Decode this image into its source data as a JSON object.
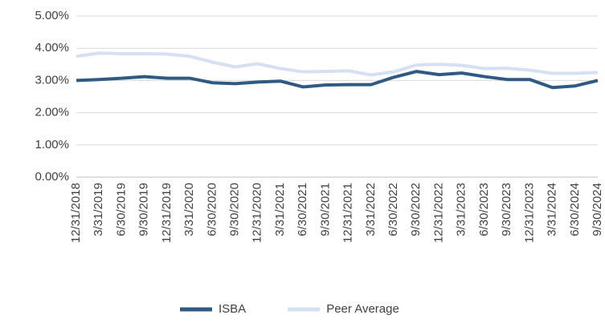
{
  "chart_data": {
    "type": "line",
    "categories": [
      "12/31/2018",
      "3/31/2019",
      "6/30/2019",
      "9/30/2019",
      "12/31/2019",
      "3/31/2020",
      "6/30/2020",
      "9/30/2020",
      "12/31/2020",
      "3/31/2021",
      "6/30/2021",
      "9/30/2021",
      "12/31/2021",
      "3/31/2022",
      "6/30/2022",
      "9/30/2022",
      "12/31/2022",
      "3/31/2023",
      "6/30/2023",
      "9/30/2023",
      "12/31/2023",
      "3/31/2024",
      "6/30/2024",
      "9/30/2024"
    ],
    "series": [
      {
        "name": "ISBA",
        "color": "#305a82",
        "values": [
          3.0,
          3.03,
          3.07,
          3.12,
          3.07,
          3.07,
          2.93,
          2.9,
          2.95,
          2.98,
          2.8,
          2.86,
          2.87,
          2.87,
          3.1,
          3.28,
          3.18,
          3.23,
          3.12,
          3.03,
          3.03,
          2.78,
          2.83,
          3.0
        ]
      },
      {
        "name": "Peer Average",
        "color": "#d5e0f2",
        "values": [
          3.75,
          3.85,
          3.83,
          3.83,
          3.82,
          3.75,
          3.57,
          3.42,
          3.52,
          3.37,
          3.27,
          3.28,
          3.3,
          3.17,
          3.27,
          3.48,
          3.5,
          3.47,
          3.37,
          3.38,
          3.32,
          3.22,
          3.22,
          3.25
        ]
      }
    ],
    "ylim": [
      0,
      5
    ],
    "yticks": [
      {
        "value": 0,
        "label": "0.00%"
      },
      {
        "value": 1,
        "label": "1.00%"
      },
      {
        "value": 2,
        "label": "2.00%"
      },
      {
        "value": 3,
        "label": "3.00%"
      },
      {
        "value": 4,
        "label": "4.00%"
      },
      {
        "value": 5,
        "label": "5.00%"
      }
    ],
    "grid": true,
    "legend": "bottom"
  }
}
